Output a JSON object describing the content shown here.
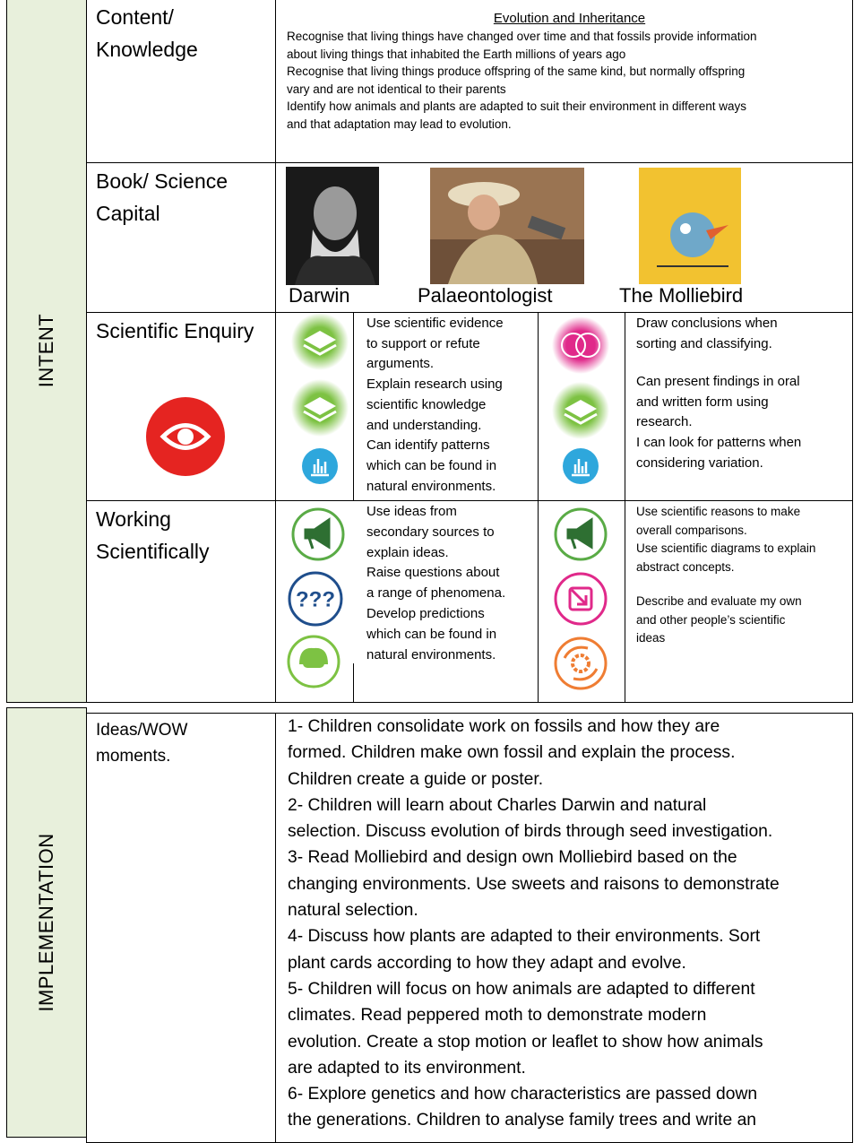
{
  "side_labels": {
    "intent": "INTENT",
    "implementation": "IMPLEMENTATION"
  },
  "content": {
    "label": "Content/ Knowledge",
    "title": "Evolution and Inheritance",
    "lines": [
      "Recognise that living things have changed over time and that fossils provide information",
      "about living things that inhabited the Earth millions of years ago",
      "Recognise that living things produce offspring of the same kind, but normally offspring",
      "vary and are not identical to their parents",
      "Identify how animals and plants are adapted to suit their environment in different ways",
      "and that adaptation may lead to evolution."
    ]
  },
  "book": {
    "label": "Book/ Science Capital",
    "captions": [
      "Darwin",
      "Palaeontologist",
      "The Molliebird"
    ]
  },
  "enquiry": {
    "label": "Scientific Enquiry",
    "left": [
      [
        "Use scientific evidence",
        "to support or refute",
        "arguments.",
        "Explain research using",
        "scientific knowledge",
        "and understanding.",
        "Can identify patterns",
        "which can be found in",
        "natural environments."
      ]
    ],
    "right": [
      [
        "Draw conclusions when",
        "sorting and classifying."
      ],
      [
        "Can present findings in oral",
        "and written form using",
        "research.",
        "I can look for patterns when",
        "considering variation."
      ]
    ]
  },
  "working": {
    "label": "Working Scientifically",
    "icon_text": "???",
    "left": [
      [
        "Use ideas from",
        "secondary sources to",
        "explain ideas.",
        "Raise questions about",
        "a range of phenomena.",
        "Develop predictions",
        "which can be found in",
        "natural environments."
      ]
    ],
    "right": [
      [
        "Use scientific reasons to make",
        "overall comparisons.",
        "Use scientific diagrams to explain",
        "abstract concepts."
      ],
      [
        "Describe and evaluate my own",
        "and other people’s scientific",
        "ideas"
      ]
    ]
  },
  "implementation": {
    "label": "Ideas/WOW moments.",
    "lines": [
      "1- Children consolidate work on fossils and how they are",
      "formed. Children make own fossil and explain the process.",
      "Children create a guide or poster.",
      "2- Children will learn about Charles Darwin and natural",
      "selection.  Discuss evolution of birds through seed investigation.",
      "3-  Read Molliebird and design own Molliebird based on the",
      "changing environments. Use sweets and raisons to demonstrate",
      "natural selection.",
      "4- Discuss how plants are adapted to their environments.  Sort",
      "plant cards according to how they adapt and evolve.",
      "5- Children will focus on how animals are adapted to different",
      "climates.  Read peppered moth to demonstrate modern",
      "evolution. Create a stop motion or leaflet to show how animals",
      "are adapted to its environment.",
      "6- Explore genetics and how characteristics are passed down",
      "the generations.  Children to analyse family trees and write an"
    ]
  }
}
